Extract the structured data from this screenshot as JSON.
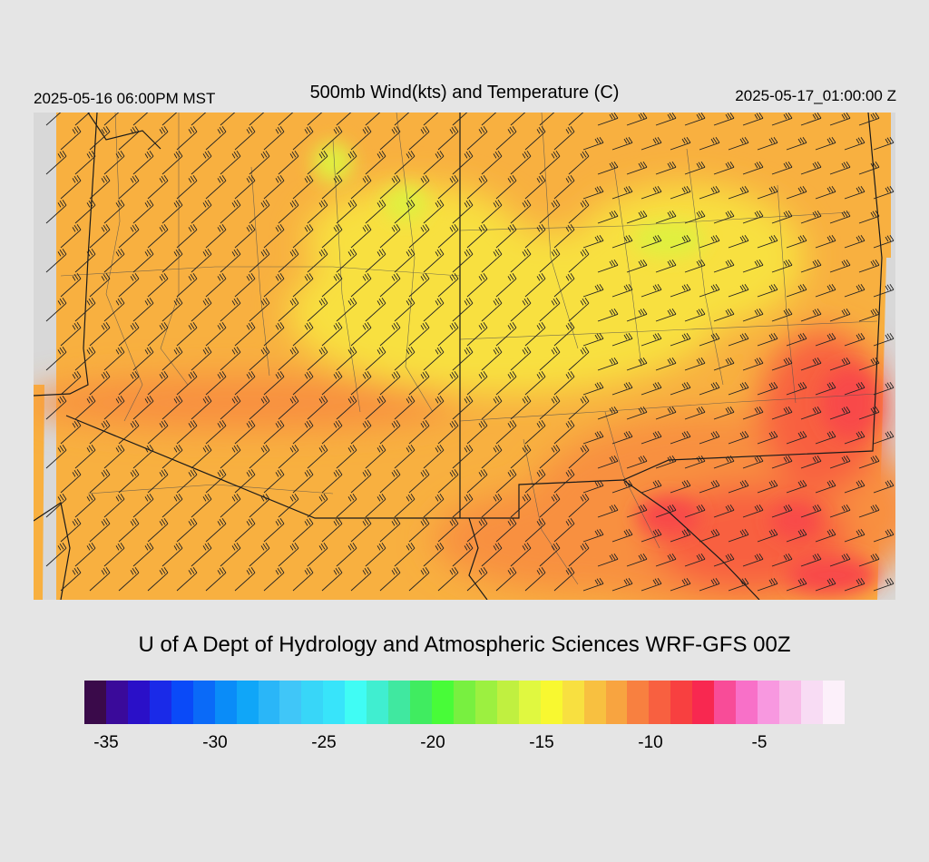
{
  "header": {
    "local_time": "2025-05-16 06:00PM MST",
    "title": "500mb Wind(kts) and Temperature (C)",
    "utc_time": "2025-05-17_01:00:00 Z"
  },
  "credit": "U of A Dept of Hydrology and Atmospheric Sciences WRF-GFS 00Z",
  "colorbar": {
    "colors": [
      "#3a0a4a",
      "#3a0a9a",
      "#2a10c8",
      "#1a2ae8",
      "#0a4af8",
      "#0a6af8",
      "#0a8cf8",
      "#10a6f8",
      "#2ab6f8",
      "#40c6f8",
      "#38d6f8",
      "#38e4fa",
      "#40fcf4",
      "#40eed0",
      "#40e8a0",
      "#40ec60",
      "#48fc38",
      "#78f040",
      "#9cf040",
      "#c0f040",
      "#e0f840",
      "#f8f830",
      "#f8e040",
      "#f8c040",
      "#f8a440",
      "#f88040",
      "#f86040",
      "#f84040",
      "#f82850",
      "#f84c98",
      "#f870c8",
      "#f898e0",
      "#f8bce8",
      "#f8dcf4",
      "#fcf0fa"
    ],
    "labels": [
      "-35",
      "-30",
      "-25",
      "-20",
      "-15",
      "-10",
      "-5"
    ]
  },
  "map": {
    "panel_color": "#d8d8d8",
    "colors": {
      "cold": "#e0f040",
      "cool": "#f8e040",
      "mild": "#f8b040",
      "warm": "#f89040",
      "hot": "#f86040",
      "hottest": "#f84848"
    }
  }
}
